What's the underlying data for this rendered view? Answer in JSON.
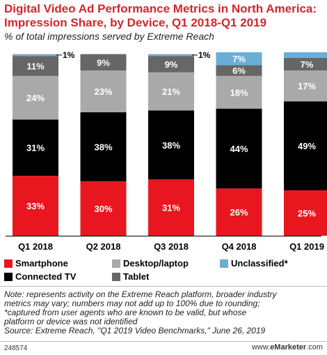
{
  "title": "Digital Video Ad Performance Metrics in North America: Impression Share, by Device, Q1 2018-Q1 2019",
  "subtitle": "% of total impressions served by Extreme Reach",
  "chart_data": {
    "type": "bar",
    "stacked": true,
    "categories": [
      "Q1 2018",
      "Q2 2018",
      "Q3 2018",
      "Q4 2018",
      "Q1 2019"
    ],
    "ylim": [
      0,
      100
    ],
    "series": [
      {
        "name": "Smartphone",
        "color": "#e8171f",
        "values": [
          33,
          30,
          31,
          26,
          25
        ],
        "labels": [
          "33%",
          "30%",
          "31%",
          "26%",
          "25%"
        ]
      },
      {
        "name": "Connected TV",
        "color": "#000000",
        "values": [
          31,
          38,
          38,
          44,
          49
        ],
        "labels": [
          "31%",
          "38%",
          "38%",
          "44%",
          "49%"
        ]
      },
      {
        "name": "Desktop/laptop",
        "color": "#a9a9a9",
        "values": [
          24,
          23,
          21,
          18,
          17
        ],
        "labels": [
          "24%",
          "23%",
          "21%",
          "18%",
          "17%"
        ]
      },
      {
        "name": "Tablet",
        "color": "#666666",
        "values": [
          11,
          9,
          9,
          6,
          7
        ],
        "labels": [
          "11%",
          "9%",
          "9%",
          "6%",
          "7%"
        ]
      },
      {
        "name": "Unclassified*",
        "color": "#6aaed6",
        "values": [
          1,
          0,
          1,
          7,
          3
        ],
        "labels": [
          "1%",
          "",
          "1%",
          "7%",
          "3%"
        ]
      }
    ]
  },
  "legend": {
    "smartphone": "Smartphone",
    "desktop": "Desktop/laptop",
    "unclassified": "Unclassified*",
    "connected_tv": "Connected TV",
    "tablet": "Tablet"
  },
  "notes": {
    "line1": "Note: represents activity on the Extreme Reach platform, broader industry",
    "line2": "metrics may vary; numbers may not add up to 100% due to rounding;",
    "line3": "*captured from user agents who are known to be valid, but whose",
    "line4": "platform or device was not identified",
    "line5": "Source: Extreme Reach, \"Q1 2019 Video Benchmarks,\" June 26, 2019"
  },
  "footer": {
    "id": "248574",
    "site_prefix": "www.",
    "site_brand": "eMarketer",
    "site_suffix": ".com"
  },
  "colors": {
    "title": "#d4262d",
    "smartphone": "#e8171f",
    "connected_tv": "#000000",
    "desktop": "#a9a9a9",
    "tablet": "#666666",
    "unclassified": "#6aaed6"
  }
}
